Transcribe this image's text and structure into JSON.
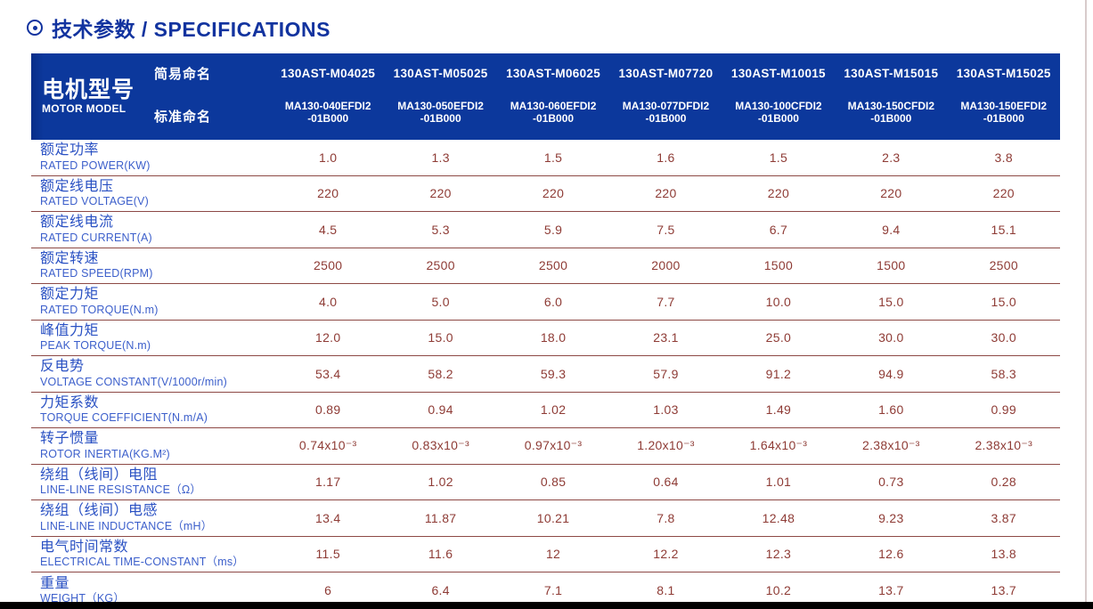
{
  "title": {
    "text": "技术参数 / SPECIFICATIONS"
  },
  "table": {
    "corner": {
      "zh": "电机型号",
      "en": "MOTOR MODEL",
      "simple_label": "简易命名",
      "standard_label": "标准命名"
    },
    "models": [
      {
        "simple": "130AST-M04025",
        "standard_line1": "MA130-040EFDI2",
        "standard_line2": "-01B000"
      },
      {
        "simple": "130AST-M05025",
        "standard_line1": "MA130-050EFDI2",
        "standard_line2": "-01B000"
      },
      {
        "simple": "130AST-M06025",
        "standard_line1": "MA130-060EFDI2",
        "standard_line2": "-01B000"
      },
      {
        "simple": "130AST-M07720",
        "standard_line1": "MA130-077DFDI2",
        "standard_line2": "-01B000"
      },
      {
        "simple": "130AST-M10015",
        "standard_line1": "MA130-100CFDI2",
        "standard_line2": "-01B000"
      },
      {
        "simple": "130AST-M15015",
        "standard_line1": "MA130-150CFDI2",
        "standard_line2": "-01B000"
      },
      {
        "simple": "130AST-M15025",
        "standard_line1": "MA130-150EFDI2",
        "standard_line2": "-01B000"
      }
    ],
    "rows": [
      {
        "zh": "额定功率",
        "en": "RATED POWER(KW)",
        "values": [
          "1.0",
          "1.3",
          "1.5",
          "1.6",
          "1.5",
          "2.3",
          "3.8"
        ]
      },
      {
        "zh": "额定线电压",
        "en": "RATED VOLTAGE(V)",
        "values": [
          "220",
          "220",
          "220",
          "220",
          "220",
          "220",
          "220"
        ]
      },
      {
        "zh": "额定线电流",
        "en": "RATED CURRENT(A)",
        "values": [
          "4.5",
          "5.3",
          "5.9",
          "7.5",
          "6.7",
          "9.4",
          "15.1"
        ]
      },
      {
        "zh": "额定转速",
        "en": "RATED SPEED(RPM)",
        "values": [
          "2500",
          "2500",
          "2500",
          "2000",
          "1500",
          "1500",
          "2500"
        ]
      },
      {
        "zh": "额定力矩",
        "en": "RATED TORQUE(N.m)",
        "values": [
          "4.0",
          "5.0",
          "6.0",
          "7.7",
          "10.0",
          "15.0",
          "15.0"
        ]
      },
      {
        "zh": "峰值力矩",
        "en": "PEAK TORQUE(N.m)",
        "values": [
          "12.0",
          "15.0",
          "18.0",
          "23.1",
          "25.0",
          "30.0",
          "30.0"
        ]
      },
      {
        "zh": "反电势",
        "en": "VOLTAGE CONSTANT(V/1000r/min)",
        "values": [
          "53.4",
          "58.2",
          "59.3",
          "57.9",
          "91.2",
          "94.9",
          "58.3"
        ]
      },
      {
        "zh": "力矩系数",
        "en": "TORQUE COEFFICIENT(N.m/A)",
        "values": [
          "0.89",
          "0.94",
          "1.02",
          "1.03",
          "1.49",
          "1.60",
          "0.99"
        ]
      },
      {
        "zh": "转子惯量",
        "en": "ROTOR INERTIA(KG.M²)",
        "values": [
          "0.74x10⁻³",
          "0.83x10⁻³",
          "0.97x10⁻³",
          "1.20x10⁻³",
          "1.64x10⁻³",
          "2.38x10⁻³",
          "2.38x10⁻³"
        ]
      },
      {
        "zh": "绕组（线间）电阻",
        "en": "LINE-LINE RESISTANCE（Ω）",
        "values": [
          "1.17",
          "1.02",
          "0.85",
          "0.64",
          "1.01",
          "0.73",
          "0.28"
        ]
      },
      {
        "zh": "绕组（线间）电感",
        "en": "LINE-LINE INDUCTANCE（mH）",
        "values": [
          "13.4",
          "11.87",
          "10.21",
          "7.8",
          "12.48",
          "9.23",
          "3.87"
        ]
      },
      {
        "zh": "电气时间常数",
        "en": "ELECTRICAL TIME-CONSTANT（ms）",
        "values": [
          "11.5",
          "11.6",
          "12",
          "12.2",
          "12.3",
          "12.6",
          "13.8"
        ]
      },
      {
        "zh": "重量",
        "en": "WEIGHT（KG）",
        "values": [
          "6",
          "6.4",
          "7.1",
          "8.1",
          "10.2",
          "13.7",
          "13.7"
        ]
      }
    ]
  },
  "colors": {
    "header_blue": "#0c389c",
    "title_blue": "#12339f",
    "label_blue": "#2a51c3",
    "value_maroon": "#8e3b35",
    "separator": "#8d4945"
  }
}
